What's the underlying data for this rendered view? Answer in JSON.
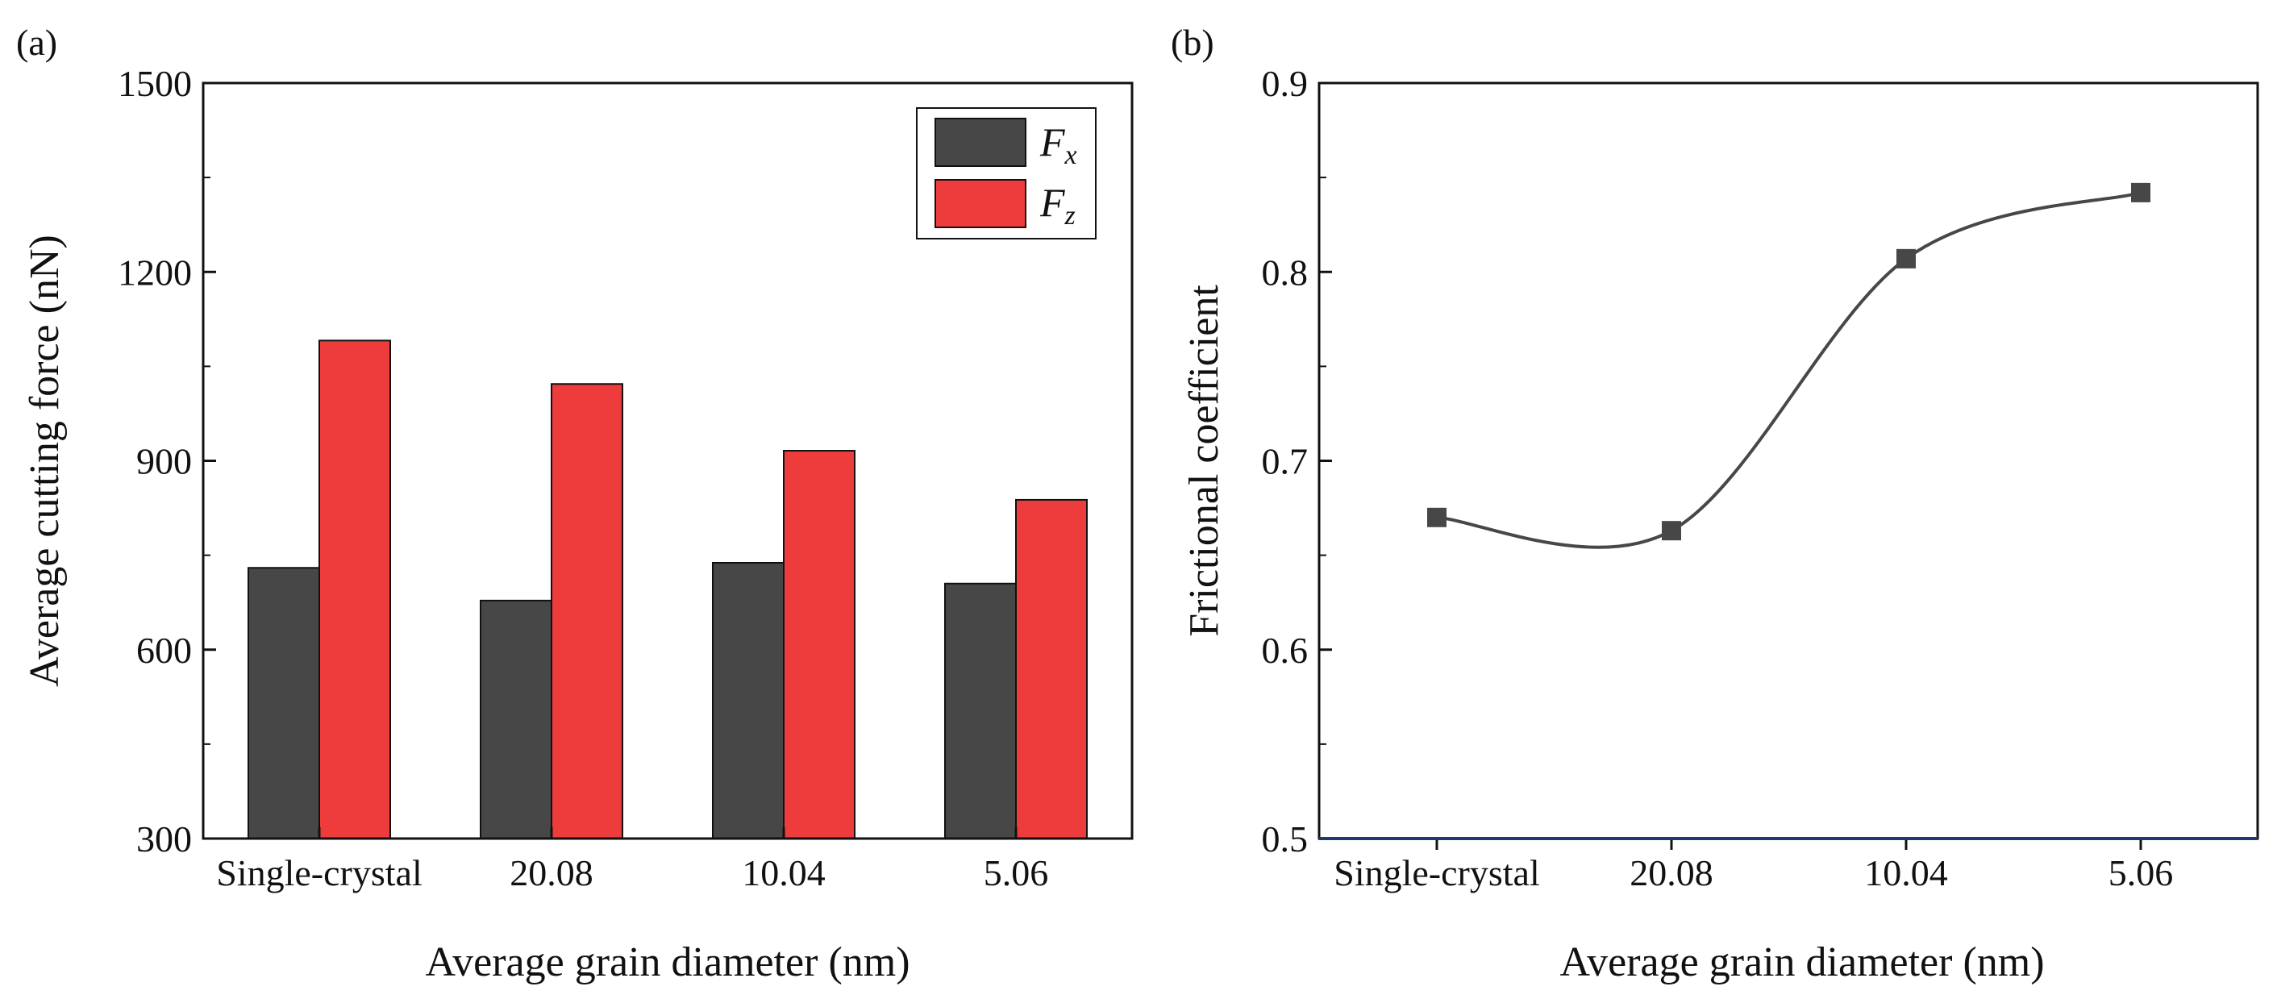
{
  "panels": {
    "a": {
      "label": "(a)"
    },
    "b": {
      "label": "(b)"
    }
  },
  "legend": {
    "fx": {
      "base": "F",
      "sub": "x"
    },
    "fz": {
      "base": "F",
      "sub": "z"
    }
  },
  "chart_data": [
    {
      "type": "bar",
      "panel": "(a)",
      "title": "",
      "xlabel": "Average grain diameter (nm)",
      "ylabel": "Average cutting force (nN)",
      "categories": [
        "Single-crystal",
        "20.08",
        "10.04",
        "5.06"
      ],
      "series": [
        {
          "name": "Fx",
          "color": "#474747",
          "values": [
            730,
            678,
            738,
            705
          ]
        },
        {
          "name": "Fz",
          "color": "#ee3c3c",
          "values": [
            1091,
            1022,
            916,
            838
          ]
        }
      ],
      "ylim": [
        300,
        1500
      ],
      "yticks": [
        300,
        600,
        900,
        1200,
        1500
      ],
      "ytick_labels": [
        "300",
        "600",
        "900",
        "1200",
        "1500"
      ],
      "legend_position": "top-right",
      "grid": false
    },
    {
      "type": "line",
      "panel": "(b)",
      "title": "",
      "xlabel": "Average grain diameter (nm)",
      "ylabel": "Frictional coefficient",
      "categories": [
        "Single-crystal",
        "20.08",
        "10.04",
        "5.06"
      ],
      "series": [
        {
          "name": "Frictional coefficient",
          "color": "#474747",
          "marker": "square",
          "smooth": true,
          "values": [
            0.67,
            0.663,
            0.807,
            0.842
          ]
        }
      ],
      "ylim": [
        0.5,
        0.9
      ],
      "yticks": [
        0.5,
        0.6,
        0.7,
        0.8,
        0.9
      ],
      "ytick_labels": [
        "0.5",
        "0.6",
        "0.7",
        "0.8",
        "0.9"
      ],
      "legend_position": "none",
      "grid": false
    }
  ]
}
